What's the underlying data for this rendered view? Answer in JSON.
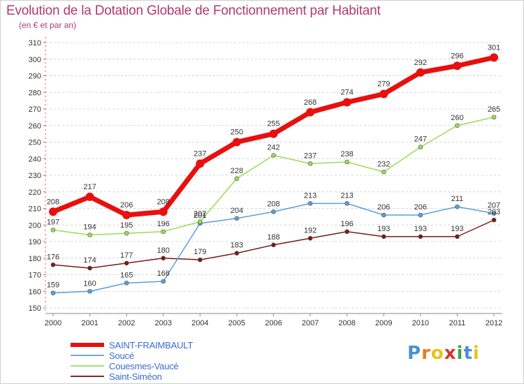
{
  "header": {
    "title": "Evolution de la Dotation Globale de Fonctionnement par Habitant",
    "subtitle": "(en € et par an)"
  },
  "chart_data": {
    "type": "line",
    "title": "Evolution de la Dotation Globale de Fonctionnement par Habitant",
    "subtitle": "(en € et par an)",
    "xlabel": "",
    "ylabel": "",
    "ylim": [
      150,
      310
    ],
    "ytick_step": 10,
    "grid": "horizontal dashed",
    "x": [
      "2000",
      "2001",
      "2002",
      "2003",
      "2004",
      "2005",
      "2006",
      "2007",
      "2008",
      "2009",
      "2010",
      "2011",
      "2012"
    ],
    "series": [
      {
        "name": "SAINT-FRAIMBAULT",
        "color": "#e8100f",
        "values": [
          208,
          217,
          206,
          208,
          237,
          250,
          255,
          268,
          274,
          279,
          292,
          296,
          301
        ]
      },
      {
        "name": "Soucé",
        "color": "#5a9fd6",
        "values": [
          159,
          160,
          165,
          166,
          201,
          204,
          208,
          213,
          213,
          206,
          206,
          211,
          207
        ]
      },
      {
        "name": "Couesmes-Vaucé",
        "color": "#99dd55",
        "values": [
          197,
          194,
          195,
          196,
          202,
          228,
          242,
          237,
          238,
          232,
          247,
          260,
          265
        ]
      },
      {
        "name": "Saint-Siméon",
        "color": "#7a1a1a",
        "values": [
          176,
          174,
          177,
          180,
          179,
          183,
          188,
          192,
          196,
          193,
          193,
          193,
          203
        ]
      }
    ]
  },
  "legend": {
    "items": [
      {
        "label": "SAINT-FRAIMBAULT",
        "color": "#e8100f"
      },
      {
        "label": "Soucé",
        "color": "#6fa8dc"
      },
      {
        "label": "Couesmes-Vaucé",
        "color": "#a6e07a"
      },
      {
        "label": "Saint-Siméon",
        "color": "#7a2a2a"
      }
    ]
  },
  "logo": {
    "letters": [
      "P",
      "r",
      "o",
      "x",
      "i",
      "t",
      "i"
    ],
    "colors": [
      "#4a8fd6",
      "#e87b1a",
      "#e8c31a",
      "#d9342b",
      "#3fa33f",
      "#4a8fd6",
      "#e8c31a"
    ]
  }
}
